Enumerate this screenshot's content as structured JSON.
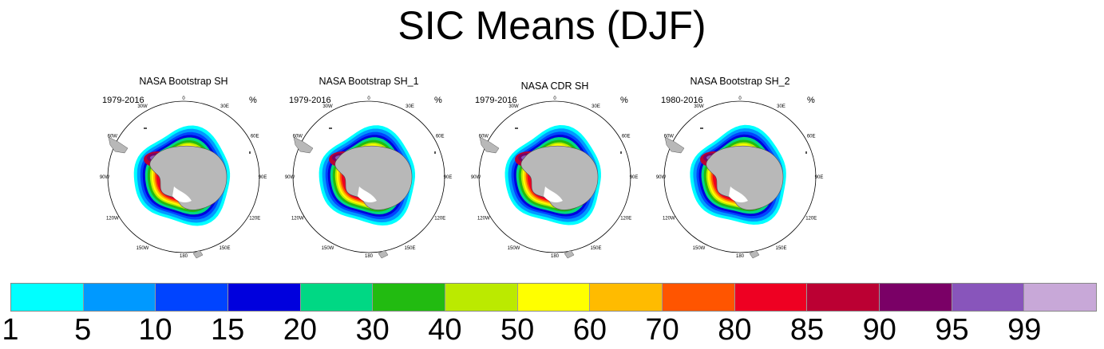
{
  "title": "SIC Means (DJF)",
  "panels": [
    {
      "title": "NASA Bootstrap SH",
      "years": "1979-2016",
      "unit": "%"
    },
    {
      "title": "NASA Bootstrap SH_1",
      "years": "1979-2016",
      "unit": "%"
    },
    {
      "title": "NASA CDR SH",
      "years": "1979-2016",
      "unit": "%"
    },
    {
      "title": "NASA Bootstrap SH_2",
      "years": "1980-2016",
      "unit": "%"
    }
  ],
  "longitude_labels": [
    "0",
    "30E",
    "60E",
    "90E",
    "120E",
    "150E",
    "180",
    "150W",
    "120W",
    "90W",
    "60W",
    "30W"
  ],
  "chart_data": {
    "type": "heatmap",
    "title": "SIC Means (DJF)",
    "projection": "south polar stereographic",
    "unit": "%",
    "colorbar": {
      "levels": [
        "1",
        "5",
        "10",
        "15",
        "20",
        "30",
        "40",
        "50",
        "60",
        "70",
        "80",
        "85",
        "90",
        "95",
        "99"
      ],
      "colors": [
        "#00ffff",
        "#0099ff",
        "#0044ff",
        "#0000dd",
        "#00d884",
        "#22bb11",
        "#bbea00",
        "#ffff00",
        "#ffbb00",
        "#ff5500",
        "#ee0022",
        "#bb0033",
        "#7a0066",
        "#8855bb",
        "#c8a8d8"
      ]
    },
    "series": [
      {
        "name": "NASA Bootstrap SH",
        "period": "1979-2016"
      },
      {
        "name": "NASA Bootstrap SH_1",
        "period": "1979-2016"
      },
      {
        "name": "NASA CDR SH",
        "period": "1979-2016"
      },
      {
        "name": "NASA Bootstrap SH_2",
        "period": "1980-2016"
      }
    ]
  }
}
